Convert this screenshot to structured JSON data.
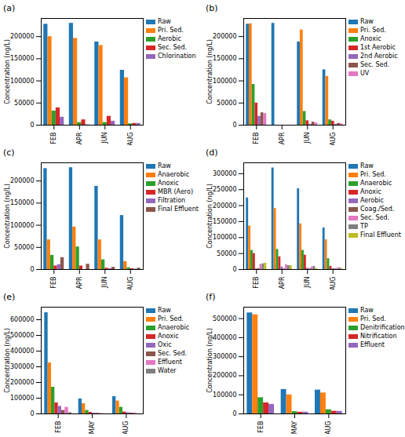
{
  "chart_data": [
    {
      "type": "bar",
      "title": "(a)",
      "y_label": "Concentration (ng/L)",
      "categories": [
        "FEB",
        "APR",
        "JUN",
        "AUG"
      ],
      "ylim": [
        0,
        241000
      ],
      "yticks": [
        0,
        50000,
        100000,
        150000,
        200000
      ],
      "legend": "right",
      "series": [
        {
          "name": "Raw",
          "color": "#1f77b4",
          "values": [
            228000,
            230000,
            188000,
            124000
          ]
        },
        {
          "name": "Pri. Sed.",
          "color": "#ff7f0e",
          "values": [
            200000,
            196000,
            180000,
            107000
          ]
        },
        {
          "name": "Aerobic",
          "color": "#2ca02c",
          "values": [
            32000,
            6000,
            6000,
            3000
          ]
        },
        {
          "name": "Sec. Sed.",
          "color": "#d62728",
          "values": [
            39000,
            12000,
            20000,
            4000
          ]
        },
        {
          "name": "Chlorination",
          "color": "#9467bd",
          "values": [
            18000,
            1000,
            9000,
            4000
          ]
        }
      ]
    },
    {
      "type": "bar",
      "title": "(b)",
      "y_label": "Concentration (ng/L)",
      "categories": [
        "FEB",
        "APR",
        "JUN",
        "AUG"
      ],
      "ylim": [
        0,
        241000
      ],
      "yticks": [
        0,
        50000,
        100000,
        150000,
        200000
      ],
      "legend": "right",
      "series": [
        {
          "name": "Raw",
          "color": "#1f77b4",
          "values": [
            228000,
            230000,
            188000,
            125000
          ]
        },
        {
          "name": "Pri. Sed.",
          "color": "#ff7f0e",
          "values": [
            229000,
            null,
            215000,
            110000
          ]
        },
        {
          "name": "Anoxic",
          "color": "#2ca02c",
          "values": [
            92000,
            null,
            31000,
            12000
          ]
        },
        {
          "name": "1st Aerobic",
          "color": "#d62728",
          "values": [
            50000,
            null,
            10000,
            9000
          ]
        },
        {
          "name": "2nd Aerobic",
          "color": "#9467bd",
          "values": [
            20000,
            null,
            2000,
            2000
          ]
        },
        {
          "name": "Sec. Sed.",
          "color": "#8c564b",
          "values": [
            28000,
            null,
            7000,
            4000
          ]
        },
        {
          "name": "UV",
          "color": "#e377c2",
          "values": [
            26000,
            null,
            5000,
            3000
          ]
        }
      ]
    },
    {
      "type": "bar",
      "title": "(c)",
      "y_label": "Concentration (ng/L)",
      "categories": [
        "FEB",
        "APR",
        "JUN",
        "AUG"
      ],
      "ylim": [
        0,
        241000
      ],
      "yticks": [
        0,
        50000,
        100000,
        150000,
        200000
      ],
      "legend": "right",
      "series": [
        {
          "name": "Raw",
          "color": "#1f77b4",
          "values": [
            228000,
            230000,
            188000,
            122000
          ]
        },
        {
          "name": "Anaerobic",
          "color": "#ff7f0e",
          "values": [
            67000,
            96000,
            67000,
            18000
          ]
        },
        {
          "name": "Anoxic",
          "color": "#2ca02c",
          "values": [
            32000,
            51000,
            22000,
            4000
          ]
        },
        {
          "name": "MBR (Aero)",
          "color": "#d62728",
          "values": [
            8000,
            8000,
            3000,
            2000
          ]
        },
        {
          "name": "Filtration",
          "color": "#9467bd",
          "values": [
            11000,
            null,
            2000,
            1000
          ]
        },
        {
          "name": "Final Effluent",
          "color": "#8c564b",
          "values": [
            27000,
            12000,
            5000,
            3000
          ]
        }
      ]
    },
    {
      "type": "bar",
      "title": "(d)",
      "y_label": "Concentration (ng/L)",
      "categories": [
        "FEB",
        "APR",
        "JUN",
        "AUG"
      ],
      "ylim": [
        0,
        334000
      ],
      "yticks": [
        0,
        50000,
        100000,
        150000,
        200000,
        250000,
        300000
      ],
      "legend": "right",
      "series": [
        {
          "name": "Raw",
          "color": "#1f77b4",
          "values": [
            224000,
            318000,
            253000,
            130000
          ]
        },
        {
          "name": "Pri. Sed.",
          "color": "#ff7f0e",
          "values": [
            136000,
            191000,
            143000,
            93000
          ]
        },
        {
          "name": "Anaerobic",
          "color": "#2ca02c",
          "values": [
            60000,
            63000,
            60000,
            34000
          ]
        },
        {
          "name": "Anoxic",
          "color": "#d62728",
          "values": [
            50000,
            40000,
            45000,
            10000
          ]
        },
        {
          "name": "Aerobic",
          "color": "#9467bd",
          "values": [
            2000,
            8000,
            4000,
            3000
          ]
        },
        {
          "name": "Coag./Sed.",
          "color": "#8c564b",
          "values": [
            3000,
            2000,
            2000,
            2000
          ]
        },
        {
          "name": "Sec. Sed.",
          "color": "#e377c2",
          "values": [
            16000,
            15000,
            8000,
            4000
          ]
        },
        {
          "name": "TP",
          "color": "#7f7f7f",
          "values": [
            18000,
            12000,
            10000,
            5000
          ]
        },
        {
          "name": "Final Effluent",
          "color": "#bcbd22",
          "values": [
            20000,
            12000,
            3000,
            2000
          ]
        }
      ]
    },
    {
      "type": "bar",
      "title": "(e)",
      "y_label": "Concentration (ng/L)",
      "categories": [
        "FEB",
        "MAY",
        "AUG"
      ],
      "ylim": [
        0,
        680000
      ],
      "yticks": [
        0,
        100000,
        200000,
        300000,
        400000,
        500000,
        600000
      ],
      "legend": "right",
      "series": [
        {
          "name": "Raw",
          "color": "#1f77b4",
          "values": [
            645000,
            95000,
            110000
          ]
        },
        {
          "name": "Pri. Sed.",
          "color": "#ff7f0e",
          "values": [
            325000,
            65000,
            82000
          ]
        },
        {
          "name": "Anaerobic",
          "color": "#2ca02c",
          "values": [
            170000,
            22000,
            42000
          ]
        },
        {
          "name": "Anoxic",
          "color": "#d62728",
          "values": [
            70000,
            10000,
            12000
          ]
        },
        {
          "name": "Oxic",
          "color": "#9467bd",
          "values": [
            48000,
            5000,
            8000
          ]
        },
        {
          "name": "Sec. Sed.",
          "color": "#8c564b",
          "values": [
            22000,
            4000,
            5000
          ]
        },
        {
          "name": "Effluent",
          "color": "#e377c2",
          "values": [
            42000,
            3000,
            6000
          ]
        },
        {
          "name": "Water",
          "color": "#7f7f7f",
          "values": [
            8000,
            1000,
            1000
          ]
        }
      ]
    },
    {
      "type": "bar",
      "title": "(f)",
      "y_label": "Concentration (ng/L)",
      "categories": [
        "FEB",
        "MAY",
        "AUG"
      ],
      "ylim": [
        0,
        560000
      ],
      "yticks": [
        0,
        100000,
        200000,
        300000,
        400000,
        500000
      ],
      "legend": "right",
      "series": [
        {
          "name": "Raw",
          "color": "#1f77b4",
          "values": [
            530000,
            128000,
            125000
          ]
        },
        {
          "name": "Pri. Sed.",
          "color": "#ff7f0e",
          "values": [
            520000,
            100000,
            110000
          ]
        },
        {
          "name": "Denitrification",
          "color": "#2ca02c",
          "values": [
            85000,
            12000,
            22000
          ]
        },
        {
          "name": "Nitrification",
          "color": "#d62728",
          "values": [
            58000,
            9000,
            14000
          ]
        },
        {
          "name": "Effluent",
          "color": "#9467bd",
          "values": [
            50000,
            9000,
            13000
          ]
        }
      ]
    }
  ]
}
